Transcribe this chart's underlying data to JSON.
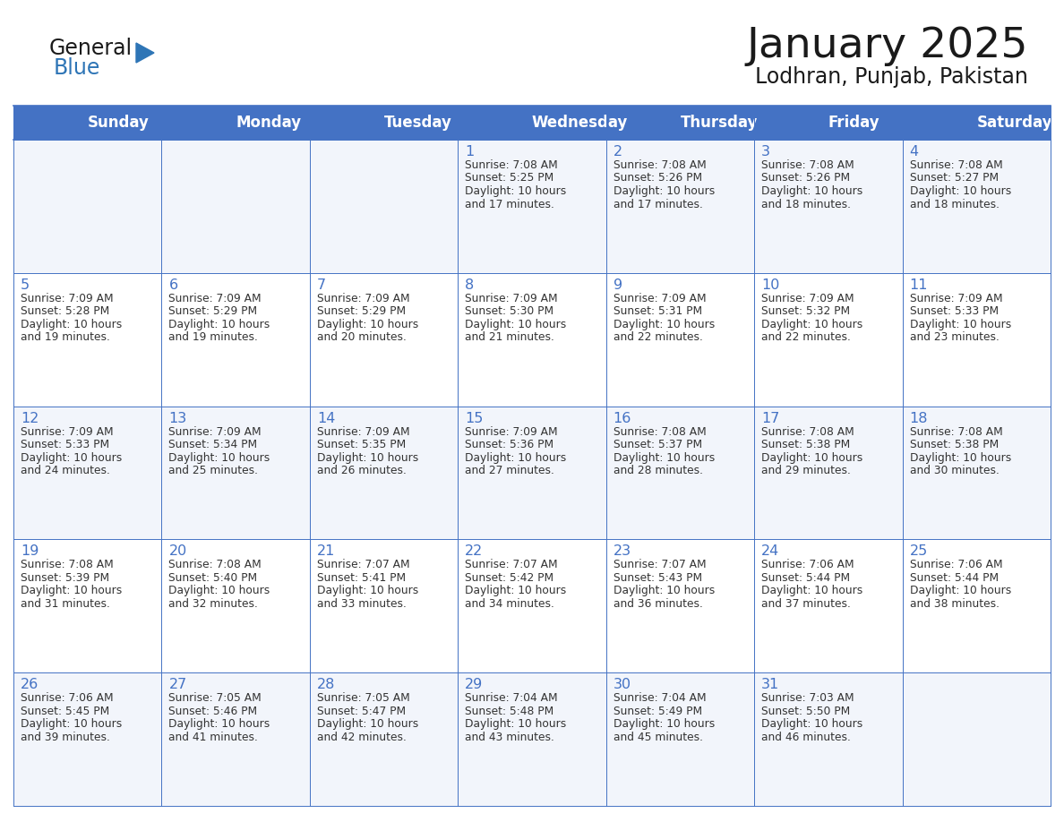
{
  "title": "January 2025",
  "subtitle": "Lodhran, Punjab, Pakistan",
  "days_of_week": [
    "Sunday",
    "Monday",
    "Tuesday",
    "Wednesday",
    "Thursday",
    "Friday",
    "Saturday"
  ],
  "header_bg": "#4472C4",
  "header_text": "#FFFFFF",
  "cell_bg_odd": "#F2F5FB",
  "cell_bg_even": "#FFFFFF",
  "cell_text": "#333333",
  "border_color": "#4472C4",
  "title_color": "#1a1a1a",
  "subtitle_color": "#1a1a1a",
  "day_number_color": "#4472C4",
  "logo_general_color": "#1a1a1a",
  "logo_blue_color": "#2E75B6",
  "calendar_data": [
    [
      {
        "day": "",
        "sunrise": "",
        "sunset": "",
        "daylight": ""
      },
      {
        "day": "",
        "sunrise": "",
        "sunset": "",
        "daylight": ""
      },
      {
        "day": "",
        "sunrise": "",
        "sunset": "",
        "daylight": ""
      },
      {
        "day": "1",
        "sunrise": "7:08 AM",
        "sunset": "5:25 PM",
        "daylight": "10 hours and 17 minutes."
      },
      {
        "day": "2",
        "sunrise": "7:08 AM",
        "sunset": "5:26 PM",
        "daylight": "10 hours and 17 minutes."
      },
      {
        "day": "3",
        "sunrise": "7:08 AM",
        "sunset": "5:26 PM",
        "daylight": "10 hours and 18 minutes."
      },
      {
        "day": "4",
        "sunrise": "7:08 AM",
        "sunset": "5:27 PM",
        "daylight": "10 hours and 18 minutes."
      }
    ],
    [
      {
        "day": "5",
        "sunrise": "7:09 AM",
        "sunset": "5:28 PM",
        "daylight": "10 hours and 19 minutes."
      },
      {
        "day": "6",
        "sunrise": "7:09 AM",
        "sunset": "5:29 PM",
        "daylight": "10 hours and 19 minutes."
      },
      {
        "day": "7",
        "sunrise": "7:09 AM",
        "sunset": "5:29 PM",
        "daylight": "10 hours and 20 minutes."
      },
      {
        "day": "8",
        "sunrise": "7:09 AM",
        "sunset": "5:30 PM",
        "daylight": "10 hours and 21 minutes."
      },
      {
        "day": "9",
        "sunrise": "7:09 AM",
        "sunset": "5:31 PM",
        "daylight": "10 hours and 22 minutes."
      },
      {
        "day": "10",
        "sunrise": "7:09 AM",
        "sunset": "5:32 PM",
        "daylight": "10 hours and 22 minutes."
      },
      {
        "day": "11",
        "sunrise": "7:09 AM",
        "sunset": "5:33 PM",
        "daylight": "10 hours and 23 minutes."
      }
    ],
    [
      {
        "day": "12",
        "sunrise": "7:09 AM",
        "sunset": "5:33 PM",
        "daylight": "10 hours and 24 minutes."
      },
      {
        "day": "13",
        "sunrise": "7:09 AM",
        "sunset": "5:34 PM",
        "daylight": "10 hours and 25 minutes."
      },
      {
        "day": "14",
        "sunrise": "7:09 AM",
        "sunset": "5:35 PM",
        "daylight": "10 hours and 26 minutes."
      },
      {
        "day": "15",
        "sunrise": "7:09 AM",
        "sunset": "5:36 PM",
        "daylight": "10 hours and 27 minutes."
      },
      {
        "day": "16",
        "sunrise": "7:08 AM",
        "sunset": "5:37 PM",
        "daylight": "10 hours and 28 minutes."
      },
      {
        "day": "17",
        "sunrise": "7:08 AM",
        "sunset": "5:38 PM",
        "daylight": "10 hours and 29 minutes."
      },
      {
        "day": "18",
        "sunrise": "7:08 AM",
        "sunset": "5:38 PM",
        "daylight": "10 hours and 30 minutes."
      }
    ],
    [
      {
        "day": "19",
        "sunrise": "7:08 AM",
        "sunset": "5:39 PM",
        "daylight": "10 hours and 31 minutes."
      },
      {
        "day": "20",
        "sunrise": "7:08 AM",
        "sunset": "5:40 PM",
        "daylight": "10 hours and 32 minutes."
      },
      {
        "day": "21",
        "sunrise": "7:07 AM",
        "sunset": "5:41 PM",
        "daylight": "10 hours and 33 minutes."
      },
      {
        "day": "22",
        "sunrise": "7:07 AM",
        "sunset": "5:42 PM",
        "daylight": "10 hours and 34 minutes."
      },
      {
        "day": "23",
        "sunrise": "7:07 AM",
        "sunset": "5:43 PM",
        "daylight": "10 hours and 36 minutes."
      },
      {
        "day": "24",
        "sunrise": "7:06 AM",
        "sunset": "5:44 PM",
        "daylight": "10 hours and 37 minutes."
      },
      {
        "day": "25",
        "sunrise": "7:06 AM",
        "sunset": "5:44 PM",
        "daylight": "10 hours and 38 minutes."
      }
    ],
    [
      {
        "day": "26",
        "sunrise": "7:06 AM",
        "sunset": "5:45 PM",
        "daylight": "10 hours and 39 minutes."
      },
      {
        "day": "27",
        "sunrise": "7:05 AM",
        "sunset": "5:46 PM",
        "daylight": "10 hours and 41 minutes."
      },
      {
        "day": "28",
        "sunrise": "7:05 AM",
        "sunset": "5:47 PM",
        "daylight": "10 hours and 42 minutes."
      },
      {
        "day": "29",
        "sunrise": "7:04 AM",
        "sunset": "5:48 PM",
        "daylight": "10 hours and 43 minutes."
      },
      {
        "day": "30",
        "sunrise": "7:04 AM",
        "sunset": "5:49 PM",
        "daylight": "10 hours and 45 minutes."
      },
      {
        "day": "31",
        "sunrise": "7:03 AM",
        "sunset": "5:50 PM",
        "daylight": "10 hours and 46 minutes."
      },
      {
        "day": "",
        "sunrise": "",
        "sunset": "",
        "daylight": ""
      }
    ]
  ],
  "figsize": [
    11.88,
    9.18
  ],
  "dpi": 100
}
